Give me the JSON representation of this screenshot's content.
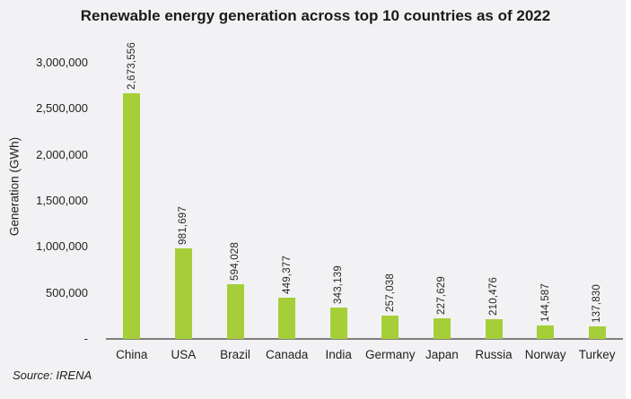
{
  "title": "Renewable energy generation across top 10 countries as of 2022",
  "source_note": "Source: IRENA",
  "colors": {
    "background": "#F2F2F4",
    "bar": "#A6CE39",
    "axis_line": "#7F7F7F",
    "text": "#262626"
  },
  "chart_data": {
    "type": "bar",
    "title": "Renewable energy generation across top 10 countries as of 2022",
    "xlabel": "",
    "ylabel": "Generation (GWh)",
    "categories": [
      "China",
      "USA",
      "Brazil",
      "Canada",
      "India",
      "Germany",
      "Japan",
      "Russia",
      "Norway",
      "Turkey"
    ],
    "values": [
      2673556,
      981697,
      594028,
      449377,
      343139,
      257038,
      227629,
      210476,
      144587,
      137830
    ],
    "value_labels": [
      "2,673,556",
      "981,697",
      "594,028",
      "449,377",
      "343,139",
      "257,038",
      "227,629",
      "210,476",
      "144,587",
      "137,830"
    ],
    "ylim": [
      0,
      3000000
    ],
    "yticks": [
      {
        "value": 3000000,
        "label": "3,000,000"
      },
      {
        "value": 2500000,
        "label": "2,500,000"
      },
      {
        "value": 2000000,
        "label": "2,000,000"
      },
      {
        "value": 1500000,
        "label": "1,500,000"
      },
      {
        "value": 1000000,
        "label": "1,000,000"
      },
      {
        "value": 500000,
        "label": "500,000"
      },
      {
        "value": 0,
        "label": "-"
      }
    ],
    "grid": false,
    "legend": false,
    "bar_color": "#A6CE39",
    "source": "Source: IRENA"
  }
}
